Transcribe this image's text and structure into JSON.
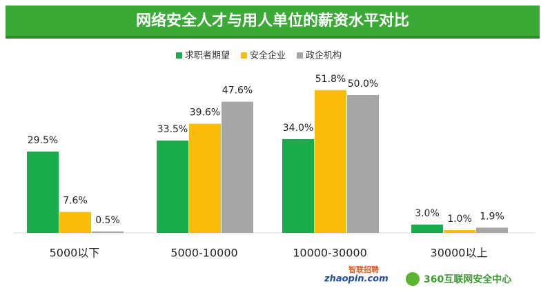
{
  "chart_data": {
    "type": "bar",
    "title": "网络安全人才与用人单位的薪资水平对比",
    "categories": [
      "5000以下",
      "5000-10000",
      "10000-30000",
      "30000以上"
    ],
    "series": [
      {
        "name": "求职者期望",
        "color": "#1aab4d",
        "values": [
          29.5,
          33.5,
          34.0,
          3.0
        ],
        "value_labels": [
          "29.5%",
          "33.5%",
          "34.0%",
          "3.0%"
        ]
      },
      {
        "name": "安全企业",
        "color": "#fbbd0c",
        "values": [
          7.6,
          39.6,
          51.8,
          1.0
        ],
        "value_labels": [
          "7.6%",
          "39.6%",
          "51.8%",
          "1.0%"
        ]
      },
      {
        "name": "政企机构",
        "color": "#a6a6a6",
        "values": [
          0.5,
          47.6,
          50.0,
          1.9
        ],
        "value_labels": [
          "0.5%",
          "47.6%",
          "50.0%",
          "1.9%"
        ]
      }
    ],
    "legend": "top",
    "sources": [
      "智联招聘",
      "zhaopin.com",
      "360互联网安全中心"
    ]
  }
}
